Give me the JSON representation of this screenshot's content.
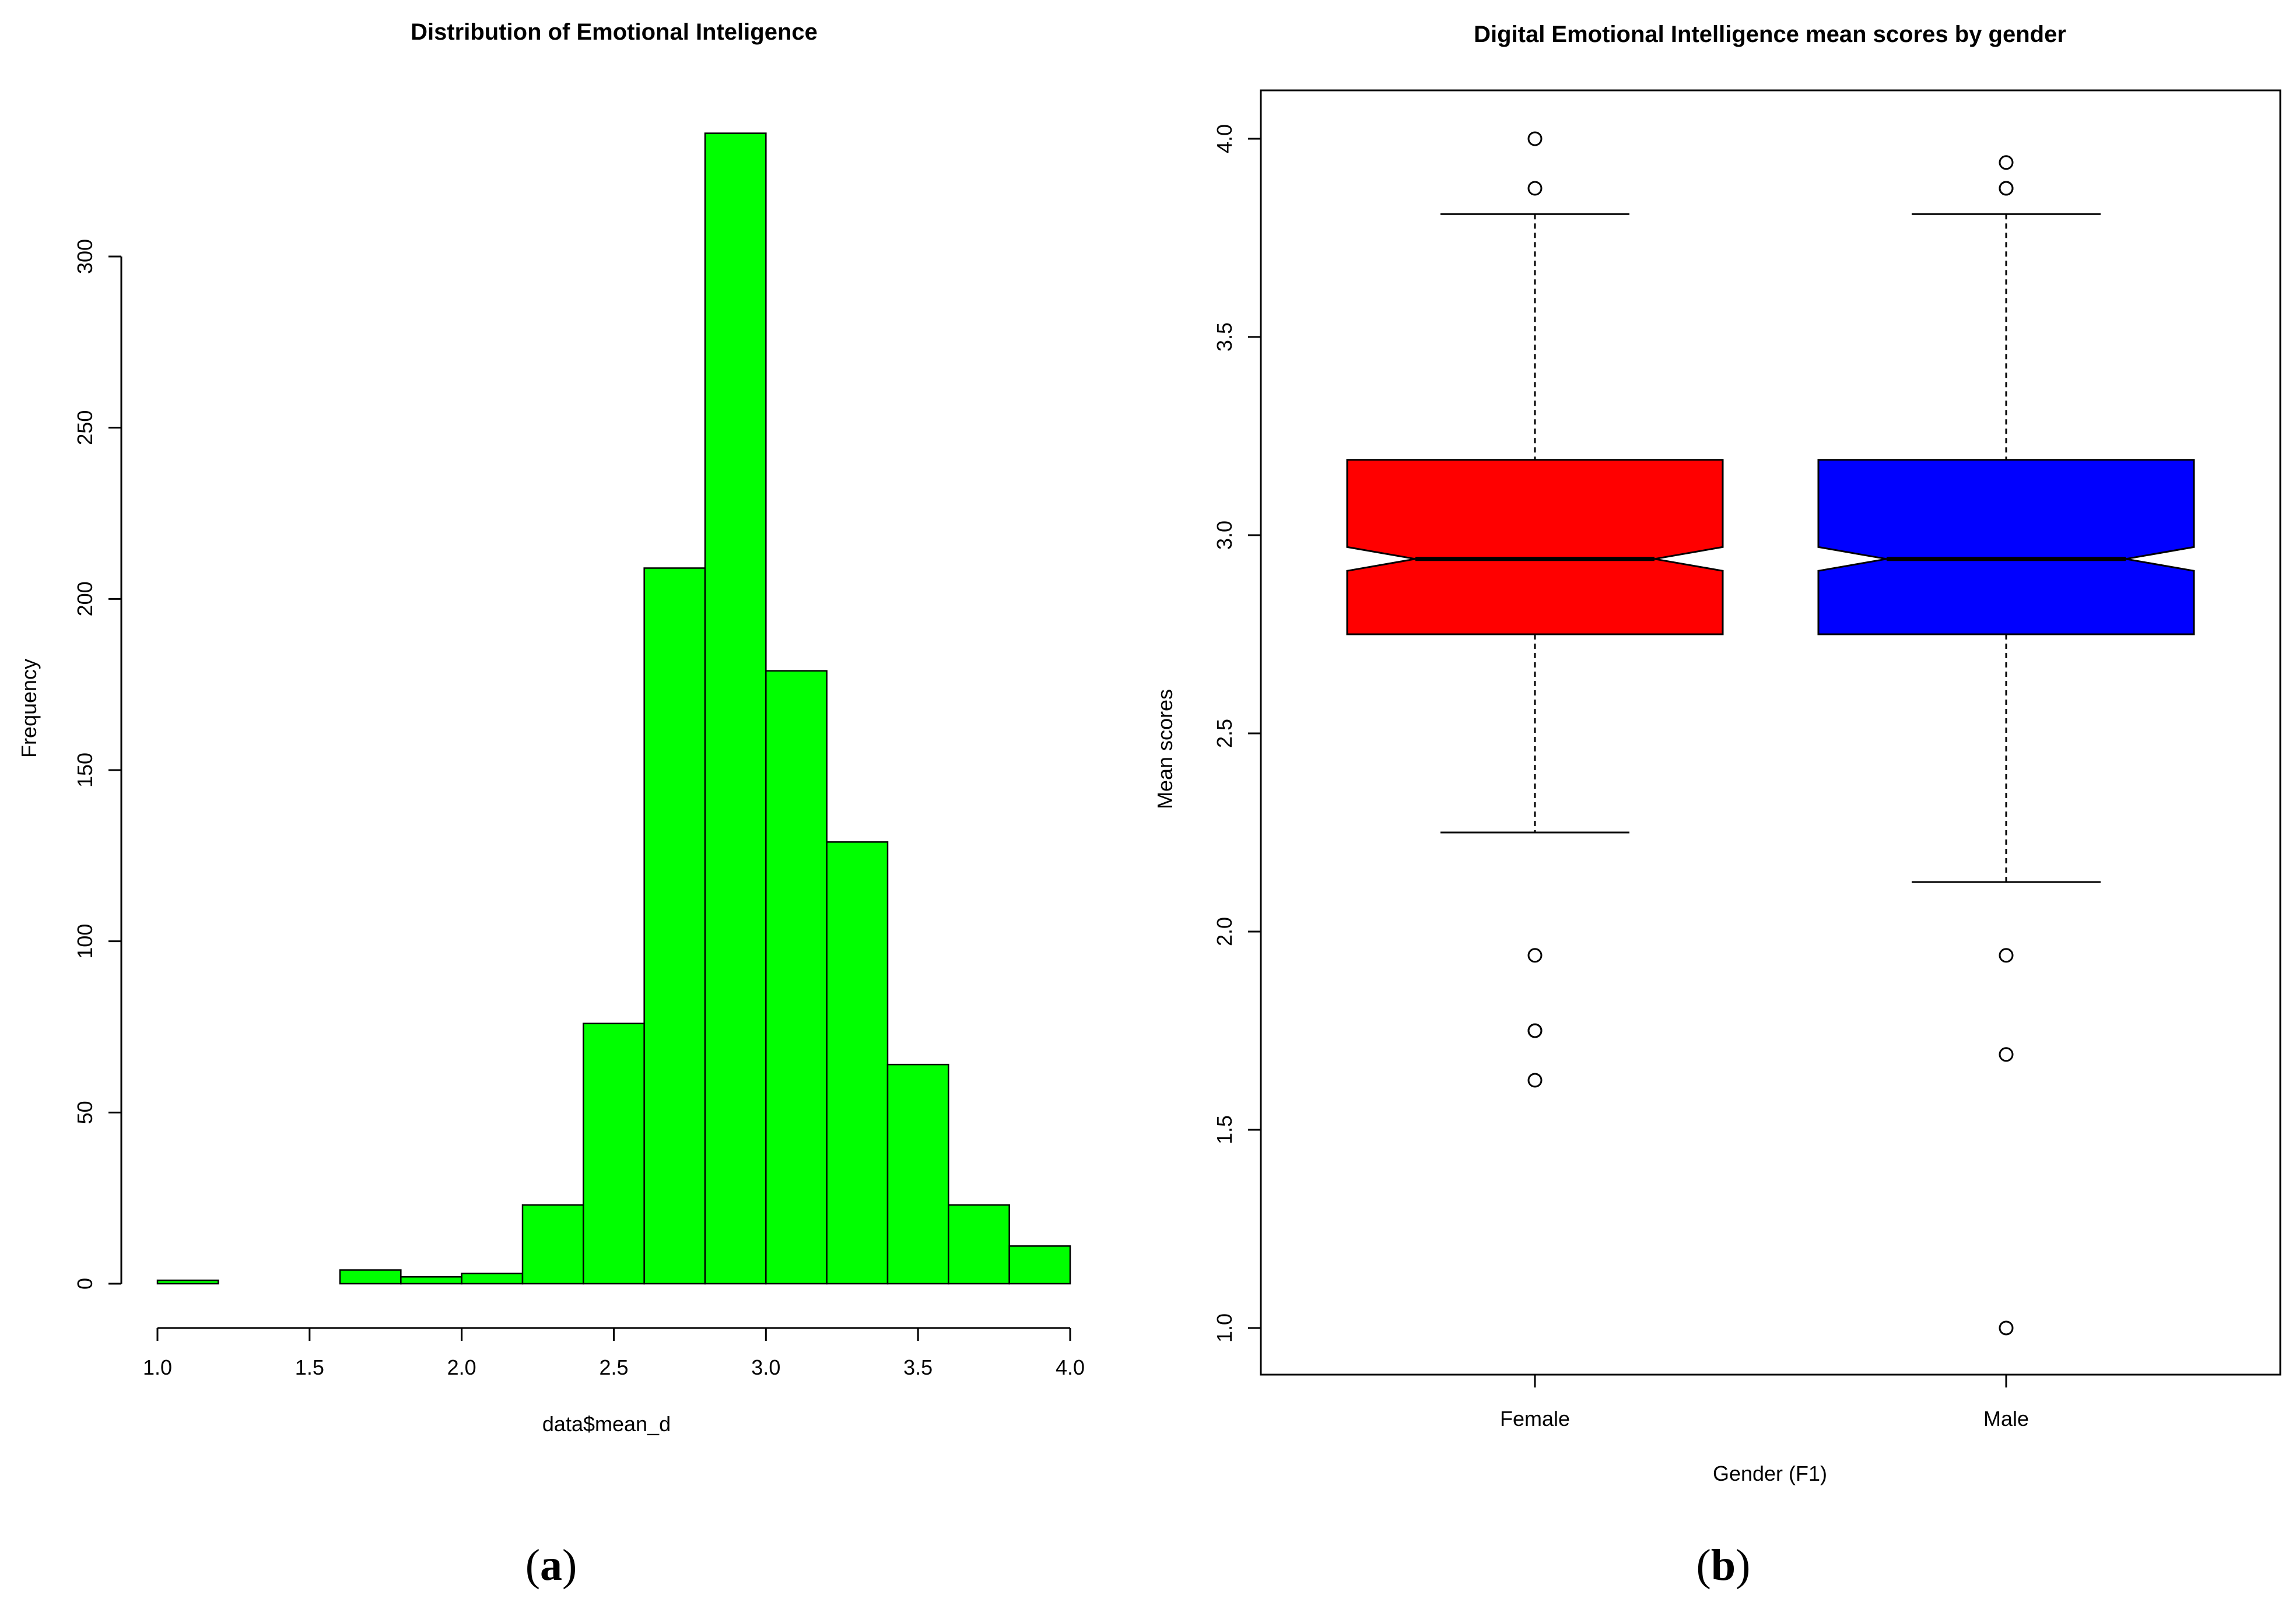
{
  "chart_data": [
    {
      "type": "bar",
      "subtype": "histogram",
      "panel_label": "a",
      "title": "Distribution of Emotional Inteligence",
      "xlabel": "data$mean_d",
      "ylabel": "Frequency",
      "bin_edges": [
        1.0,
        1.2,
        1.4,
        1.6,
        1.8,
        2.0,
        2.2,
        2.4,
        2.6,
        2.8,
        3.0,
        3.2,
        3.4,
        3.6,
        3.8,
        4.0
      ],
      "values": [
        1,
        0,
        0,
        4,
        2,
        3,
        23,
        76,
        209,
        336,
        179,
        129,
        64,
        23,
        11
      ],
      "xlim": [
        1.0,
        4.0
      ],
      "ylim": [
        0,
        300
      ],
      "xticks": [
        1.0,
        1.5,
        2.0,
        2.5,
        3.0,
        3.5,
        4.0
      ],
      "xtick_labels": [
        "1.0",
        "1.5",
        "2.0",
        "2.5",
        "3.0",
        "3.5",
        "4.0"
      ],
      "yticks": [
        0,
        50,
        100,
        150,
        200,
        250,
        300
      ],
      "ytick_labels": [
        "0",
        "50",
        "100",
        "150",
        "200",
        "250",
        "300"
      ],
      "bar_color": "#00ff00",
      "grid": false
    },
    {
      "type": "boxplot",
      "notched": true,
      "panel_label": "b",
      "title": "Digital Emotional Intelligence mean scores by gender",
      "xlabel": "Gender (F1)",
      "ylabel": "Mean scores",
      "categories": [
        "Female",
        "Male"
      ],
      "series": [
        {
          "name": "Female",
          "color": "#ff0000",
          "whisker_low": 2.25,
          "q1": 2.75,
          "notch_low": 2.91,
          "median": 2.94,
          "notch_high": 2.97,
          "q3": 3.19,
          "whisker_high": 3.81,
          "outliers": [
            1.625,
            1.75,
            1.75,
            1.94,
            3.875,
            4.0
          ]
        },
        {
          "name": "Male",
          "color": "#0000ff",
          "whisker_low": 2.125,
          "q1": 2.75,
          "notch_low": 2.91,
          "median": 2.94,
          "notch_high": 2.97,
          "q3": 3.19,
          "whisker_high": 3.81,
          "outliers": [
            1.0,
            1.69,
            1.94,
            3.875,
            3.875,
            3.94
          ]
        }
      ],
      "ylim": [
        0.88,
        4.12
      ],
      "yticks": [
        1.0,
        1.5,
        2.0,
        2.5,
        3.0,
        3.5,
        4.0
      ],
      "ytick_labels": [
        "1.0",
        "1.5",
        "2.0",
        "2.5",
        "3.0",
        "3.5",
        "4.0"
      ],
      "grid": false
    }
  ]
}
